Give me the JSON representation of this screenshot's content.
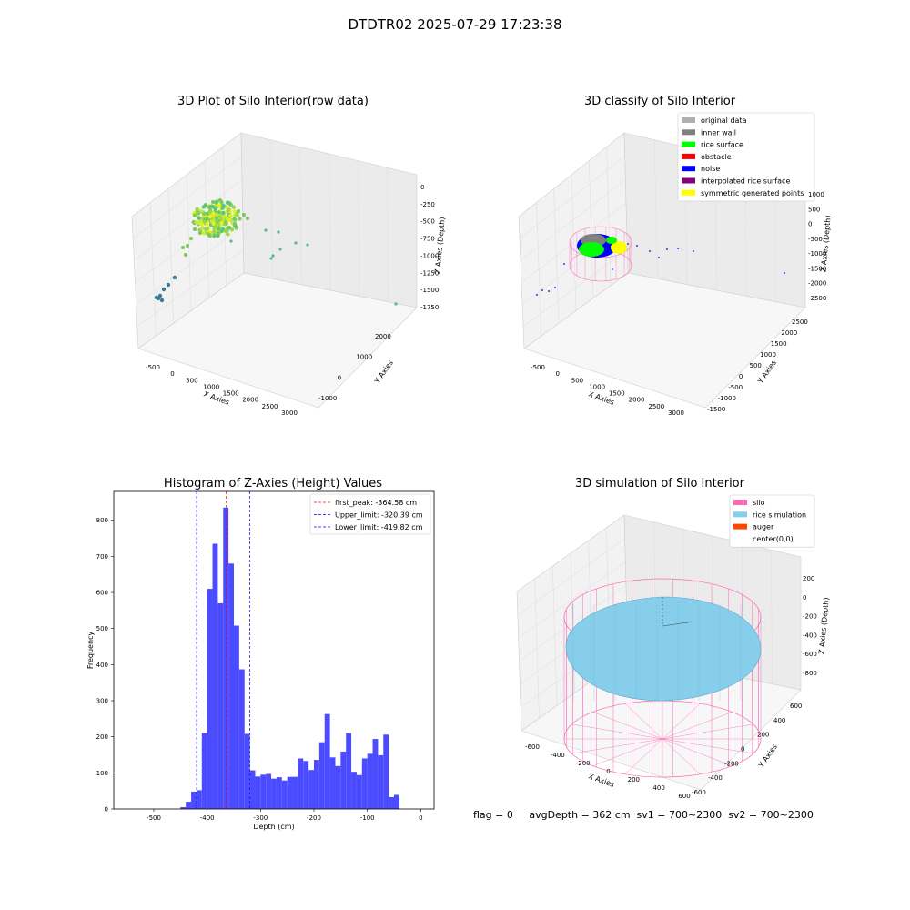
{
  "title": "DTDTR02 2025-07-29 17:23:38",
  "status_text": "flag = 0     avgDepth = 362 cm  sv1 = 700~2300  sv2 = 700~2300",
  "chart_data": [
    {
      "type": "scatter",
      "title": "3D Plot of Silo Interior(row data)",
      "xlabel": "X Axies",
      "ylabel": "Y Axies",
      "zlabel": "Z Axies (Depth)",
      "x_ticks": [
        "-500",
        "0",
        "500",
        "1000",
        "1500",
        "2000",
        "2500",
        "3000"
      ],
      "y_ticks": [
        "-1000",
        "0",
        "1000",
        "2000"
      ],
      "z_ticks": [
        "0",
        "-250",
        "-500",
        "-750",
        "-1000",
        "-1250",
        "-1500",
        "-1750"
      ],
      "grid": true
    },
    {
      "type": "scatter",
      "title": "3D classify of Silo Interior",
      "xlabel": "X Axies",
      "ylabel": "Y Axies",
      "zlabel": "Z Axies (Depth)",
      "x_ticks": [
        "-500",
        "0",
        "500",
        "1000",
        "1500",
        "2000",
        "2500",
        "3000"
      ],
      "y_ticks": [
        "-1500",
        "-1000",
        "-500",
        "0",
        "500",
        "1000",
        "1500",
        "2000",
        "2500"
      ],
      "z_ticks": [
        "1000",
        "500",
        "0",
        "-500",
        "-1000",
        "-1500",
        "-2000",
        "-2500"
      ],
      "legend": [
        {
          "label": "original data",
          "color": "#b0b0b0"
        },
        {
          "label": "inner wall",
          "color": "#808080"
        },
        {
          "label": "rice surface",
          "color": "#00ff00"
        },
        {
          "label": "obstacle",
          "color": "#ff0000"
        },
        {
          "label": "noise",
          "color": "#0000ff"
        },
        {
          "label": "interpolated rice surface",
          "color": "#800080"
        },
        {
          "label": "symmetric generated points",
          "color": "#ffff00"
        }
      ],
      "legend_position": "top-right",
      "grid": true
    },
    {
      "type": "bar",
      "title": "Histogram of Z-Axies (Height) Values",
      "xlabel": "Depth (cm)",
      "ylabel": "Frequency",
      "xlim": [
        -575,
        25
      ],
      "ylim": [
        0,
        880
      ],
      "x_ticks": [
        -500,
        -400,
        -300,
        -200,
        -100,
        0
      ],
      "y_ticks": [
        0,
        100,
        200,
        300,
        400,
        500,
        600,
        700,
        800
      ],
      "bin_start": -450,
      "bin_width": 10,
      "values": [
        5,
        20,
        48,
        52,
        210,
        610,
        735,
        570,
        835,
        680,
        508,
        387,
        208,
        107,
        90,
        95,
        97,
        84,
        88,
        79,
        89,
        89,
        140,
        133,
        108,
        136,
        185,
        263,
        143,
        119,
        159,
        210,
        103,
        94,
        140,
        153,
        194,
        149,
        206,
        33,
        39
      ],
      "bar_color": "#4b4bff",
      "lines": [
        {
          "label": "first_peak: -364.58 cm",
          "value": -364.58,
          "color": "#ff0000"
        },
        {
          "label": "Upper_limit: -320.39 cm",
          "value": -320.39,
          "color": "#0000ff"
        },
        {
          "label": "Lower_limit: -419.82 cm",
          "value": -419.82,
          "color": "#0000ff"
        }
      ],
      "legend_position": "top-right"
    },
    {
      "type": "scatter",
      "title": "3D simulation of Silo Interior",
      "xlabel": "X Axies",
      "ylabel": "Y Axies",
      "zlabel": "Z Axies (Depth)",
      "x_ticks": [
        "-600",
        "-400",
        "-200",
        "0",
        "200",
        "400",
        "600"
      ],
      "y_ticks": [
        "-600",
        "-400",
        "-200",
        "0",
        "200",
        "400",
        "600"
      ],
      "z_ticks": [
        "200",
        "0",
        "-200",
        "-400",
        "-600",
        "-800"
      ],
      "legend": [
        {
          "label": "silo",
          "color": "#ff69b4"
        },
        {
          "label": "rice simulation",
          "color": "#87ceeb"
        },
        {
          "label": "auger",
          "color": "#ff4500"
        },
        {
          "label": "center(0,0)",
          "color": "#ffffff"
        }
      ],
      "legend_position": "top-right",
      "grid": true
    }
  ]
}
